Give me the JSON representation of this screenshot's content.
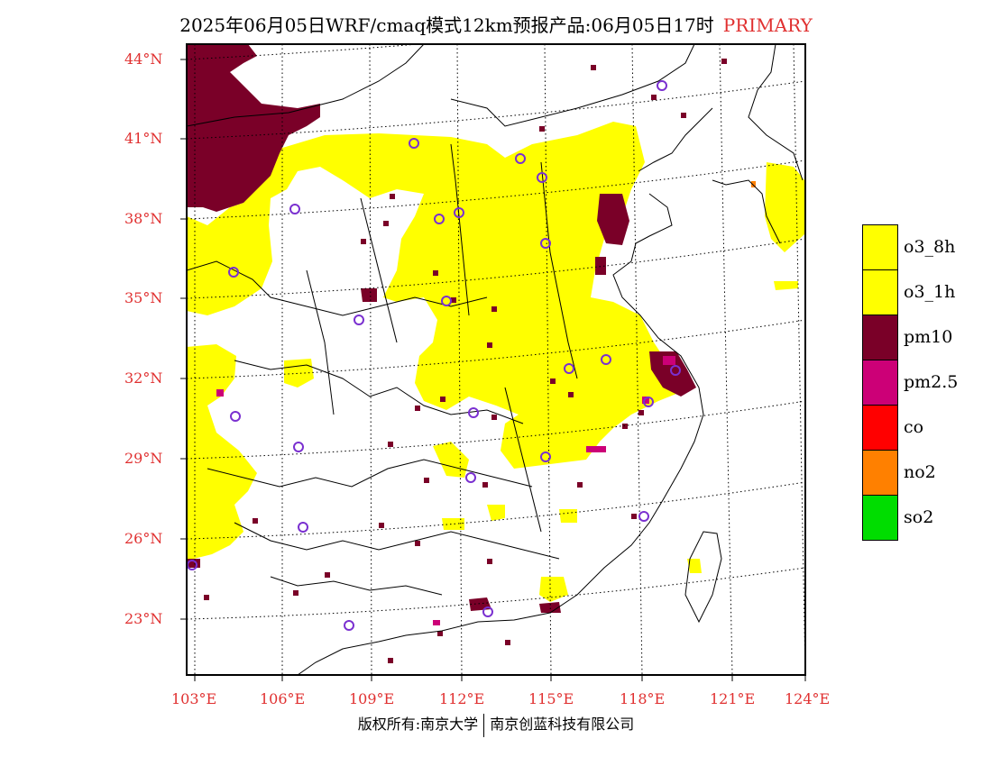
{
  "title": {
    "text": "2025年06月05日WRF/cmaq模式12km预报产品:06月05日17时",
    "tag": "PRIMARY",
    "tag_color": "#e03030"
  },
  "axes": {
    "lat_labels": [
      "44°N",
      "41°N",
      "38°N",
      "35°N",
      "32°N",
      "29°N",
      "26°N",
      "23°N"
    ],
    "lat_values": [
      44,
      41,
      38,
      35,
      32,
      29,
      26,
      23
    ],
    "lon_labels": [
      "103°E",
      "106°E",
      "109°E",
      "112°E",
      "115°E",
      "118°E",
      "121°E",
      "124°E"
    ],
    "lon_values": [
      103,
      106,
      109,
      112,
      115,
      118,
      121,
      124
    ],
    "label_color": "#e03030"
  },
  "legend": {
    "items": [
      {
        "label": "o3_8h",
        "color": "#ffff00"
      },
      {
        "label": "o3_1h",
        "color": "#ffff00"
      },
      {
        "label": "pm10",
        "color": "#7a0028"
      },
      {
        "label": "pm2.5",
        "color": "#cc0077"
      },
      {
        "label": "co",
        "color": "#ff0000"
      },
      {
        "label": "no2",
        "color": "#ff8000"
      },
      {
        "label": "so2",
        "color": "#00dd00"
      }
    ]
  },
  "stations_icon": "station-circle-icon",
  "copyright": {
    "left": "版权所有:南京大学",
    "right": "南京创蓝科技有限公司"
  }
}
